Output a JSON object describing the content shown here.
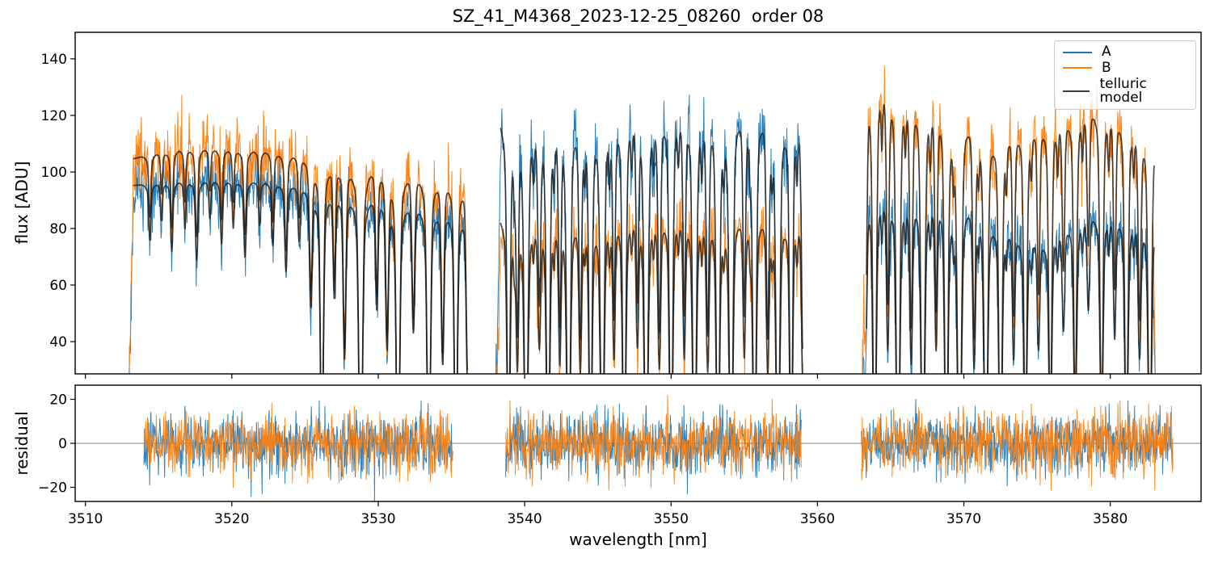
{
  "chart_data": {
    "type": "line",
    "title": "SZ_41_M4368_2023-12-25_08260  order 08",
    "xlabel": "wavelength [nm]",
    "xlim": [
      3509.3,
      3586.2
    ],
    "xticks": [
      3510,
      3520,
      3530,
      3540,
      3550,
      3560,
      3570,
      3580
    ],
    "grid": false,
    "flux_panel": {
      "ylabel": "flux [ADU]",
      "ylim": [
        28.6,
        149.4
      ],
      "yticks": [
        40,
        60,
        80,
        100,
        120,
        140
      ]
    },
    "residual_panel": {
      "ylabel": "residual",
      "ylim": [
        -26.4,
        26.4
      ],
      "yticks": [
        -20,
        0,
        20
      ],
      "zero_line_color": "#808080"
    },
    "legend": {
      "position": "upper right",
      "items": [
        {
          "label": "A",
          "color": "#1f77b4"
        },
        {
          "label": "B",
          "color": "#ff7f0e"
        },
        {
          "label": "telluric model",
          "color": "#3d3d3d"
        }
      ]
    },
    "colors": {
      "series_a": "#1f77b4",
      "series_b": "#ff7f0e",
      "telluric": "#1a1a1a",
      "axes": "#000000"
    },
    "flux_chunks": [
      [
        3512.8,
        3536.3
      ],
      [
        3537.9,
        3559.2
      ],
      [
        3562.9,
        3583.2
      ]
    ],
    "residual_chunks": [
      [
        3514.0,
        3535.1
      ],
      [
        3538.7,
        3558.9
      ],
      [
        3563.0,
        3584.3
      ]
    ],
    "a_base_points": [
      [
        3512.8,
        95
      ],
      [
        3516,
        96.5
      ],
      [
        3519,
        97
      ],
      [
        3522,
        96.5
      ],
      [
        3526,
        94.5
      ],
      [
        3529,
        93
      ],
      [
        3532,
        90.5
      ],
      [
        3536.3,
        88
      ],
      [
        3537.9,
        119
      ],
      [
        3541,
        122
      ],
      [
        3544,
        124
      ],
      [
        3547,
        125
      ],
      [
        3550,
        126.5
      ],
      [
        3553,
        126
      ],
      [
        3556,
        125
      ],
      [
        3559.2,
        125
      ],
      [
        3562.9,
        96
      ],
      [
        3566,
        95
      ],
      [
        3569,
        93.5
      ],
      [
        3571,
        91
      ],
      [
        3572.5,
        86
      ],
      [
        3574,
        79
      ],
      [
        3575.5,
        78
      ],
      [
        3577,
        83
      ],
      [
        3578.5,
        86.5
      ],
      [
        3580,
        87.5
      ],
      [
        3581.5,
        87
      ],
      [
        3583.2,
        84
      ]
    ],
    "b_base_points": [
      [
        3512.8,
        104
      ],
      [
        3515,
        107
      ],
      [
        3517.5,
        108.5
      ],
      [
        3520,
        108
      ],
      [
        3523,
        107
      ],
      [
        3526,
        105
      ],
      [
        3529,
        103.5
      ],
      [
        3532,
        101.5
      ],
      [
        3536.3,
        99.5
      ],
      [
        3537.9,
        84.5
      ],
      [
        3541,
        86
      ],
      [
        3544,
        87.5
      ],
      [
        3547,
        88
      ],
      [
        3550,
        88
      ],
      [
        3553,
        87.5
      ],
      [
        3556,
        87.5
      ],
      [
        3559.2,
        88
      ],
      [
        3562.9,
        136
      ],
      [
        3564.5,
        138
      ],
      [
        3566.5,
        133
      ],
      [
        3568.5,
        128
      ],
      [
        3570.5,
        123
      ],
      [
        3572.5,
        119
      ],
      [
        3574.5,
        119
      ],
      [
        3576.5,
        122
      ],
      [
        3578.5,
        125
      ],
      [
        3580.5,
        125
      ],
      [
        3583.2,
        117
      ]
    ],
    "telluric_dips": [
      [
        3514.4,
        0.18,
        0.07
      ],
      [
        3515.2,
        0.12,
        0.06
      ],
      [
        3515.9,
        0.22,
        0.07
      ],
      [
        3516.8,
        0.15,
        0.06
      ],
      [
        3517.6,
        0.25,
        0.08
      ],
      [
        3518.5,
        0.12,
        0.06
      ],
      [
        3519.3,
        0.2,
        0.07
      ],
      [
        3520.1,
        0.15,
        0.06
      ],
      [
        3520.9,
        0.24,
        0.08
      ],
      [
        3521.9,
        0.14,
        0.06
      ],
      [
        3522.8,
        0.2,
        0.07
      ],
      [
        3523.7,
        0.28,
        0.08
      ],
      [
        3524.6,
        0.18,
        0.07
      ],
      [
        3525.4,
        0.38,
        0.09
      ],
      [
        3526.15,
        0.88,
        0.1
      ],
      [
        3527.0,
        0.35,
        0.08
      ],
      [
        3527.7,
        0.55,
        0.09
      ],
      [
        3528.8,
        0.99,
        0.12
      ],
      [
        3529.9,
        0.38,
        0.08
      ],
      [
        3530.6,
        0.5,
        0.09
      ],
      [
        3531.35,
        0.99,
        0.11
      ],
      [
        3532.4,
        0.45,
        0.09
      ],
      [
        3533.45,
        0.97,
        0.11
      ],
      [
        3534.4,
        0.55,
        0.09
      ],
      [
        3535.3,
        0.93,
        0.1
      ],
      [
        3536.1,
        0.6,
        0.09
      ],
      [
        3538.9,
        0.9,
        0.1
      ],
      [
        3539.3,
        0.12,
        0.05
      ],
      [
        3539.5,
        0.5,
        0.08
      ],
      [
        3540.1,
        0.97,
        0.12
      ],
      [
        3540.6,
        0.1,
        0.05
      ],
      [
        3541.0,
        0.45,
        0.09
      ],
      [
        3541.6,
        0.95,
        0.11
      ],
      [
        3542.0,
        0.12,
        0.05
      ],
      [
        3542.4,
        0.5,
        0.08
      ],
      [
        3543.0,
        0.98,
        0.12
      ],
      [
        3543.8,
        0.55,
        0.09
      ],
      [
        3544.1,
        0.1,
        0.05
      ],
      [
        3544.5,
        0.9,
        0.1
      ],
      [
        3545.3,
        0.97,
        0.12
      ],
      [
        3545.8,
        0.12,
        0.05
      ],
      [
        3546.1,
        0.5,
        0.08
      ],
      [
        3546.8,
        0.93,
        0.11
      ],
      [
        3547.3,
        0.1,
        0.05
      ],
      [
        3547.7,
        0.45,
        0.08
      ],
      [
        3548.3,
        0.98,
        0.12
      ],
      [
        3548.8,
        0.1,
        0.05
      ],
      [
        3549.2,
        0.55,
        0.09
      ],
      [
        3550.0,
        0.95,
        0.11
      ],
      [
        3550.5,
        0.1,
        0.05
      ],
      [
        3550.9,
        0.5,
        0.08
      ],
      [
        3551.6,
        0.97,
        0.12
      ],
      [
        3552.1,
        0.12,
        0.05
      ],
      [
        3552.5,
        0.55,
        0.09
      ],
      [
        3553.2,
        0.93,
        0.11
      ],
      [
        3553.6,
        0.1,
        0.05
      ],
      [
        3554.1,
        0.98,
        0.12
      ],
      [
        3555.0,
        0.5,
        0.08
      ],
      [
        3555.4,
        0.1,
        0.05
      ],
      [
        3555.7,
        0.95,
        0.11
      ],
      [
        3556.6,
        0.55,
        0.09
      ],
      [
        3556.9,
        0.1,
        0.05
      ],
      [
        3557.3,
        0.97,
        0.12
      ],
      [
        3558.2,
        0.9,
        0.1
      ],
      [
        3558.6,
        0.12,
        0.05
      ],
      [
        3559.0,
        0.6,
        0.09
      ],
      [
        3563.3,
        0.5,
        0.08
      ],
      [
        3563.9,
        0.95,
        0.11
      ],
      [
        3564.4,
        0.12,
        0.05
      ],
      [
        3564.8,
        0.5,
        0.08
      ],
      [
        3565.5,
        0.98,
        0.12
      ],
      [
        3566.0,
        0.1,
        0.05
      ],
      [
        3566.4,
        0.55,
        0.09
      ],
      [
        3567.2,
        0.97,
        0.12
      ],
      [
        3567.7,
        0.12,
        0.05
      ],
      [
        3568.1,
        0.5,
        0.08
      ],
      [
        3568.8,
        0.93,
        0.11
      ],
      [
        3569.3,
        0.1,
        0.05
      ],
      [
        3569.7,
        0.98,
        0.13
      ],
      [
        3570.7,
        0.55,
        0.09
      ],
      [
        3571.0,
        0.1,
        0.05
      ],
      [
        3571.5,
        0.97,
        0.12
      ],
      [
        3572.5,
        0.93,
        0.11
      ],
      [
        3572.9,
        0.12,
        0.05
      ],
      [
        3573.4,
        0.5,
        0.08
      ],
      [
        3574.2,
        0.85,
        0.1
      ],
      [
        3574.6,
        0.1,
        0.05
      ],
      [
        3575.1,
        0.45,
        0.08
      ],
      [
        3575.9,
        0.8,
        0.1
      ],
      [
        3576.4,
        0.12,
        0.05
      ],
      [
        3576.8,
        0.4,
        0.08
      ],
      [
        3577.6,
        0.75,
        0.1
      ],
      [
        3578.1,
        0.1,
        0.05
      ],
      [
        3578.5,
        0.35,
        0.08
      ],
      [
        3579.4,
        0.8,
        0.1
      ],
      [
        3579.9,
        0.12,
        0.05
      ],
      [
        3580.3,
        0.45,
        0.08
      ],
      [
        3581.1,
        0.85,
        0.11
      ],
      [
        3581.6,
        0.1,
        0.05
      ],
      [
        3582.0,
        0.5,
        0.09
      ],
      [
        3582.7,
        0.9,
        0.11
      ]
    ],
    "noise": {
      "flux_sigma": 6.0,
      "residual_sigma": 7.0,
      "seed": 12
    }
  }
}
